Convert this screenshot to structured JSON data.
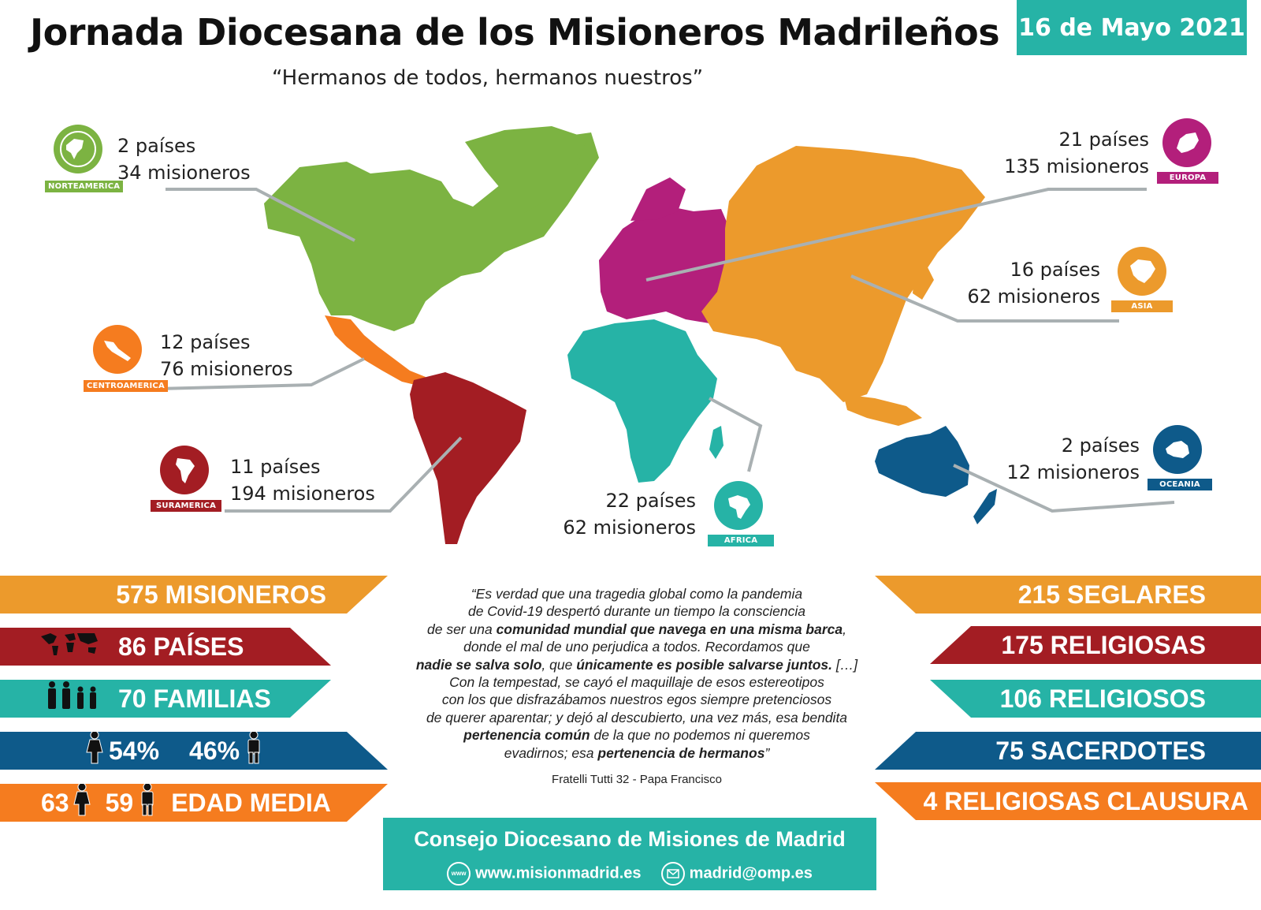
{
  "header": {
    "title": "Jornada Diocesana de los Misioneros Madrileños",
    "subtitle": "“Hermanos de todos, hermanos nuestros”",
    "date": "16 de Mayo 2021"
  },
  "colors": {
    "norteamerica": "#7cb342",
    "europa": "#b31f7b",
    "asia": "#ec9a2c",
    "centroamerica": "#f57c1f",
    "suramerica": "#a31d23",
    "africa": "#26b3a6",
    "oceania": "#0e5a8a",
    "teal": "#26b3a6"
  },
  "regions": {
    "norteamerica": {
      "tag": "NORTEAMERICA",
      "countries": "2 países",
      "missionaries": "34 misioneros",
      "icon": "globe-americas-icon"
    },
    "europa": {
      "tag": "EUROPA",
      "countries": "21 países",
      "missionaries": "135 misioneros",
      "icon": "europe-map-icon"
    },
    "asia": {
      "tag": "ASIA",
      "countries": "16 países",
      "missionaries": "62 misioneros",
      "icon": "asia-map-icon"
    },
    "centroamerica": {
      "tag": "CENTROAMERICA",
      "countries": "12 países",
      "missionaries": "76 misioneros",
      "icon": "central-america-map-icon"
    },
    "suramerica": {
      "tag": "SURAMERICA",
      "countries": "11 países",
      "missionaries": "194 misioneros",
      "icon": "south-america-map-icon"
    },
    "africa": {
      "tag": "AFRICA",
      "countries": "22 países",
      "missionaries": "62 misioneros",
      "icon": "africa-map-icon"
    },
    "oceania": {
      "tag": "OCEANIA",
      "countries": "2 países",
      "missionaries": "12 misioneros",
      "icon": "australia-map-icon"
    }
  },
  "left_stats": {
    "misioneros": "575 MISIONEROS",
    "paises": "86 PAÍSES",
    "familias": "70 FAMILIAS",
    "pct_women": "54%",
    "pct_men": "46%",
    "age_women": "63",
    "age_men": "59",
    "edad_media": "EDAD MEDIA"
  },
  "right_stats": {
    "seglares": "215 SEGLARES",
    "religiosas": "175 RELIGIOSAS",
    "religiosos": "106 RELIGIOSOS",
    "sacerdotes": "75 SACERDOTES",
    "clausura": "4 RELIGIOSAS CLAUSURA"
  },
  "quote": {
    "l1": "“Es verdad que una tragedia global como la pandemia",
    "l2": "de Covid-19 despertó durante un tiempo la consciencia",
    "l3a": "de ser una ",
    "l3b": "comunidad mundial que navega en una misma barca",
    "l3c": ",",
    "l4": "donde el mal de uno perjudica a todos. Recordamos que",
    "l5a": "nadie se salva solo",
    "l5b": ", que ",
    "l5c": "únicamente es posible salvarse juntos.",
    "l5d": " […]",
    "l6": "Con la tempestad, se cayó el maquillaje de esos estereotipos",
    "l7": "con los que disfrazábamos nuestros egos siempre pretenciosos",
    "l8": "de querer aparentar; y dejó al descubierto, una vez más, esa bendita",
    "l9a": "pertenencia común",
    "l9b": " de la que no podemos ni queremos",
    "l10a": "evadirnos; esa ",
    "l10b": "pertenencia de hermanos",
    "l10c": "”",
    "source": "Fratelli Tutti 32 - Papa Francisco"
  },
  "footer": {
    "title": "Consejo Diocesano de Misiones de Madrid",
    "web_icon_text": "www",
    "web": "www.misionmadrid.es",
    "email": "madrid@omp.es",
    "email_icon": "envelope-icon"
  }
}
